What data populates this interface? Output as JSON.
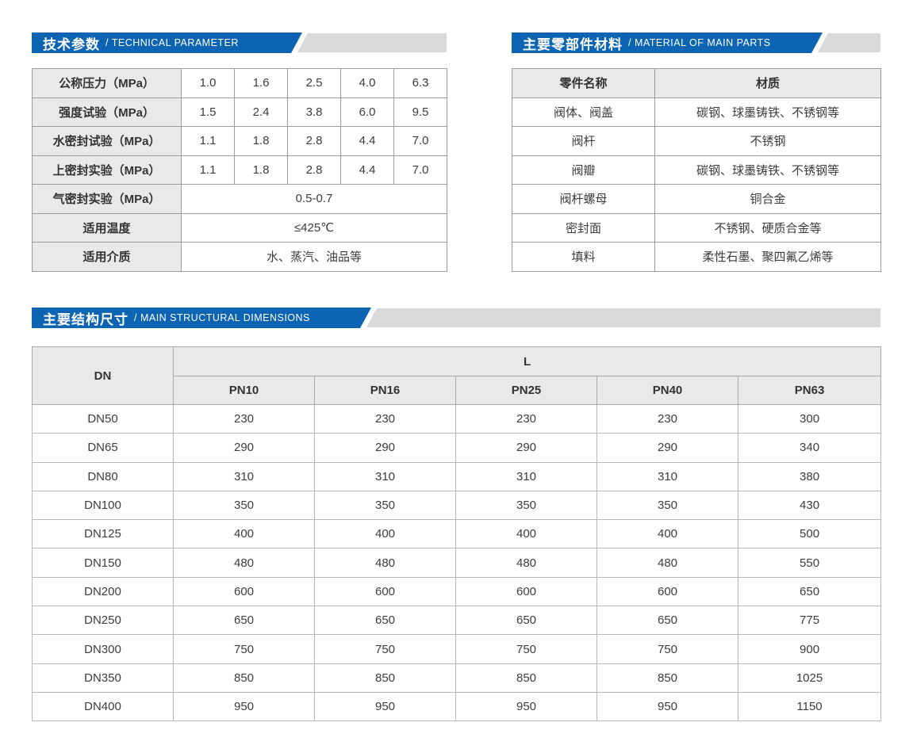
{
  "colors": {
    "accent_blue": "#0d64b2",
    "banner_gray_tail": "#d9d9d9",
    "table_header_bg": "#e9e9e9",
    "border": "#9c9c9c"
  },
  "sections": {
    "technical": {
      "title_zh": "技术参数",
      "title_en": "/ TECHNICAL PARAMETER",
      "rows": [
        {
          "label": "公称压力（MPa）",
          "values": [
            "1.0",
            "1.6",
            "2.5",
            "4.0",
            "6.3"
          ]
        },
        {
          "label": "强度试验（MPa）",
          "values": [
            "1.5",
            "2.4",
            "3.8",
            "6.0",
            "9.5"
          ]
        },
        {
          "label": "水密封试验（MPa）",
          "values": [
            "1.1",
            "1.8",
            "2.8",
            "4.4",
            "7.0"
          ]
        },
        {
          "label": "上密封实验（MPa）",
          "values": [
            "1.1",
            "1.8",
            "2.8",
            "4.4",
            "7.0"
          ]
        },
        {
          "label": "气密封实验（MPa）",
          "value": "0.5-0.7"
        },
        {
          "label": "适用温度",
          "value": "≤425℃"
        },
        {
          "label": "适用介质",
          "value": "水、蒸汽、油品等"
        }
      ]
    },
    "materials": {
      "title_zh": "主要零部件材料",
      "title_en": "/ MATERIAL OF MAIN PARTS",
      "headers": [
        "零件名称",
        "材质"
      ],
      "rows": [
        {
          "part": "阀体、阀盖",
          "material": "碳钢、球墨铸铁、不锈钢等"
        },
        {
          "part": "阀杆",
          "material": "不锈钢"
        },
        {
          "part": "阀瓣",
          "material": "碳钢、球墨铸铁、不锈钢等"
        },
        {
          "part": "阀杆螺母",
          "material": "铜合金"
        },
        {
          "part": "密封面",
          "material": "不锈钢、硬质合金等"
        },
        {
          "part": "填料",
          "material": "柔性石墨、聚四氟乙烯等"
        }
      ]
    },
    "dimensions": {
      "title_zh": "主要结构尺寸",
      "title_en": "/ MAIN STRUCTURAL DIMENSIONS",
      "dn_header": "DN",
      "l_header": "L",
      "pn_headers": [
        "PN10",
        "PN16",
        "PN25",
        "PN40",
        "PN63"
      ],
      "rows": [
        {
          "dn": "DN50",
          "values": [
            "230",
            "230",
            "230",
            "230",
            "300"
          ]
        },
        {
          "dn": "DN65",
          "values": [
            "290",
            "290",
            "290",
            "290",
            "340"
          ]
        },
        {
          "dn": "DN80",
          "values": [
            "310",
            "310",
            "310",
            "310",
            "380"
          ]
        },
        {
          "dn": "DN100",
          "values": [
            "350",
            "350",
            "350",
            "350",
            "430"
          ]
        },
        {
          "dn": "DN125",
          "values": [
            "400",
            "400",
            "400",
            "400",
            "500"
          ]
        },
        {
          "dn": "DN150",
          "values": [
            "480",
            "480",
            "480",
            "480",
            "550"
          ]
        },
        {
          "dn": "DN200",
          "values": [
            "600",
            "600",
            "600",
            "600",
            "650"
          ]
        },
        {
          "dn": "DN250",
          "values": [
            "650",
            "650",
            "650",
            "650",
            "775"
          ]
        },
        {
          "dn": "DN300",
          "values": [
            "750",
            "750",
            "750",
            "750",
            "900"
          ]
        },
        {
          "dn": "DN350",
          "values": [
            "850",
            "850",
            "850",
            "850",
            "1025"
          ]
        },
        {
          "dn": "DN400",
          "values": [
            "950",
            "950",
            "950",
            "950",
            "1150"
          ]
        }
      ]
    }
  }
}
